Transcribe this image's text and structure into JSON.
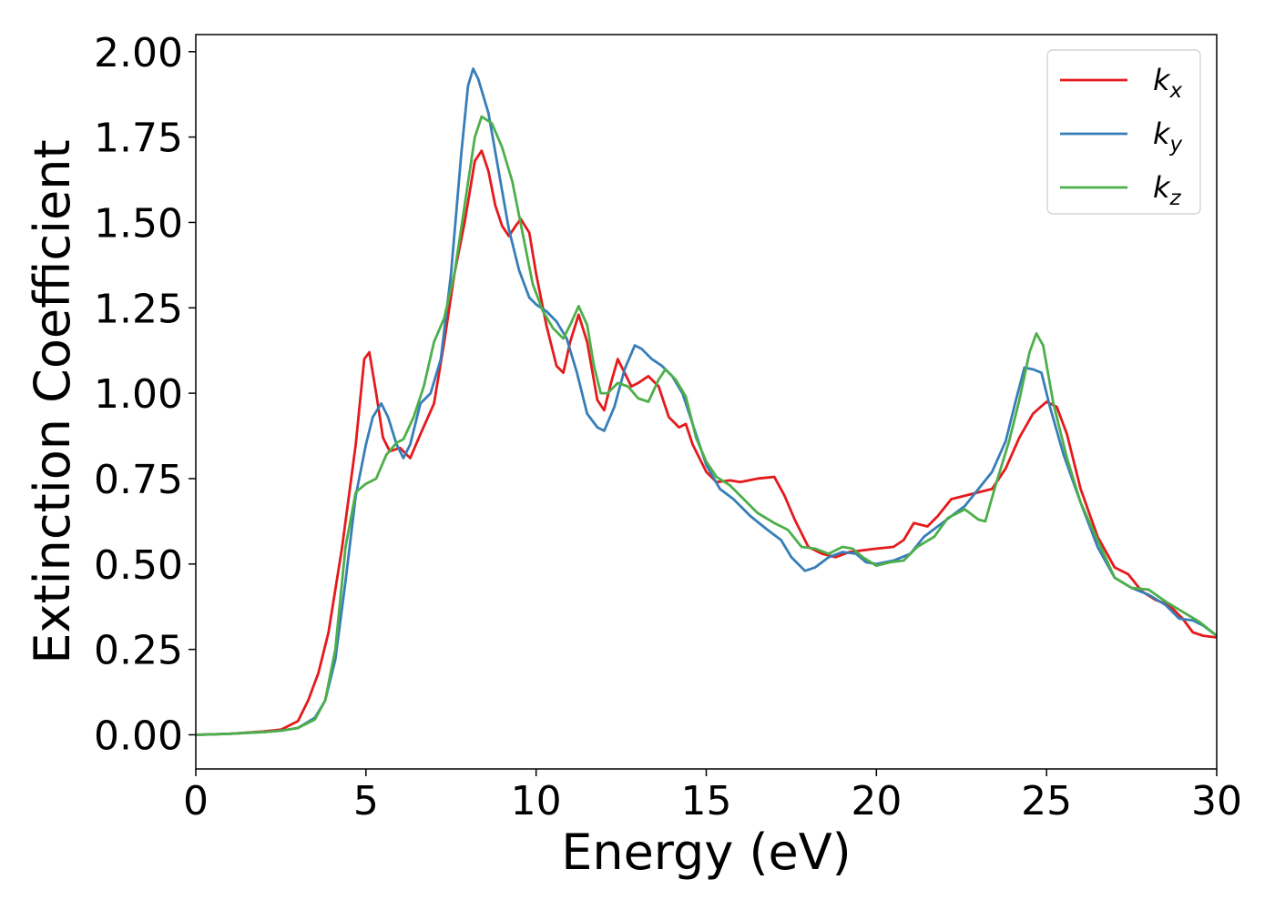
{
  "chart_data": {
    "type": "line",
    "title": "",
    "xlabel": "Energy (eV)",
    "ylabel": "Extinction Coefficient",
    "xlim": [
      0,
      30
    ],
    "ylim": [
      -0.1,
      2.05
    ],
    "xticks": [
      0,
      5,
      10,
      15,
      20,
      25,
      30
    ],
    "xtick_labels": [
      "0",
      "5",
      "10",
      "15",
      "20",
      "25",
      "30"
    ],
    "yticks": [
      0,
      0.25,
      0.5,
      0.75,
      1.0,
      1.25,
      1.5,
      1.75,
      2.0
    ],
    "ytick_labels": [
      "0.00",
      "0.25",
      "0.50",
      "0.75",
      "1.00",
      "1.25",
      "1.50",
      "1.75",
      "2.00"
    ],
    "grid": false,
    "legend_position": "top-right",
    "series": [
      {
        "name": "k",
        "subscript": "x",
        "color": "#e41a1c",
        "points": [
          [
            0,
            0
          ],
          [
            1,
            0.003
          ],
          [
            2,
            0.01
          ],
          [
            2.5,
            0.015
          ],
          [
            3,
            0.04
          ],
          [
            3.3,
            0.1
          ],
          [
            3.6,
            0.18
          ],
          [
            3.9,
            0.3
          ],
          [
            4.3,
            0.55
          ],
          [
            4.7,
            0.85
          ],
          [
            4.95,
            1.1
          ],
          [
            5.1,
            1.12
          ],
          [
            5.3,
            1.0
          ],
          [
            5.5,
            0.87
          ],
          [
            5.7,
            0.83
          ],
          [
            6.0,
            0.84
          ],
          [
            6.3,
            0.81
          ],
          [
            6.6,
            0.88
          ],
          [
            7.0,
            0.97
          ],
          [
            7.3,
            1.15
          ],
          [
            7.6,
            1.35
          ],
          [
            7.9,
            1.5
          ],
          [
            8.2,
            1.68
          ],
          [
            8.4,
            1.71
          ],
          [
            8.6,
            1.65
          ],
          [
            8.8,
            1.55
          ],
          [
            9.0,
            1.49
          ],
          [
            9.2,
            1.46
          ],
          [
            9.4,
            1.49
          ],
          [
            9.55,
            1.51
          ],
          [
            9.8,
            1.47
          ],
          [
            10.0,
            1.35
          ],
          [
            10.3,
            1.2
          ],
          [
            10.6,
            1.08
          ],
          [
            10.8,
            1.06
          ],
          [
            11.0,
            1.15
          ],
          [
            11.25,
            1.23
          ],
          [
            11.5,
            1.15
          ],
          [
            11.8,
            0.98
          ],
          [
            12.0,
            0.95
          ],
          [
            12.2,
            1.03
          ],
          [
            12.4,
            1.1
          ],
          [
            12.6,
            1.06
          ],
          [
            12.8,
            1.02
          ],
          [
            13.0,
            1.03
          ],
          [
            13.3,
            1.05
          ],
          [
            13.6,
            1.02
          ],
          [
            13.9,
            0.93
          ],
          [
            14.2,
            0.9
          ],
          [
            14.4,
            0.91
          ],
          [
            14.6,
            0.85
          ],
          [
            15.0,
            0.77
          ],
          [
            15.3,
            0.74
          ],
          [
            15.7,
            0.745
          ],
          [
            16.0,
            0.74
          ],
          [
            16.5,
            0.75
          ],
          [
            17.0,
            0.755
          ],
          [
            17.3,
            0.7
          ],
          [
            17.6,
            0.63
          ],
          [
            18.0,
            0.55
          ],
          [
            18.4,
            0.53
          ],
          [
            18.8,
            0.52
          ],
          [
            19.2,
            0.535
          ],
          [
            19.6,
            0.54
          ],
          [
            20.0,
            0.545
          ],
          [
            20.5,
            0.55
          ],
          [
            20.8,
            0.57
          ],
          [
            21.1,
            0.62
          ],
          [
            21.5,
            0.61
          ],
          [
            21.8,
            0.64
          ],
          [
            22.2,
            0.69
          ],
          [
            22.6,
            0.7
          ],
          [
            23.0,
            0.71
          ],
          [
            23.4,
            0.72
          ],
          [
            23.8,
            0.78
          ],
          [
            24.2,
            0.87
          ],
          [
            24.6,
            0.94
          ],
          [
            25.0,
            0.975
          ],
          [
            25.3,
            0.96
          ],
          [
            25.6,
            0.88
          ],
          [
            26.0,
            0.72
          ],
          [
            26.5,
            0.58
          ],
          [
            27.0,
            0.49
          ],
          [
            27.4,
            0.47
          ],
          [
            27.8,
            0.42
          ],
          [
            28.2,
            0.395
          ],
          [
            28.6,
            0.38
          ],
          [
            29.0,
            0.34
          ],
          [
            29.3,
            0.3
          ],
          [
            29.6,
            0.29
          ],
          [
            30,
            0.285
          ]
        ]
      },
      {
        "name": "k",
        "subscript": "y",
        "color": "#377eb8",
        "points": [
          [
            0,
            0
          ],
          [
            1,
            0.003
          ],
          [
            2,
            0.008
          ],
          [
            2.5,
            0.012
          ],
          [
            3,
            0.02
          ],
          [
            3.5,
            0.05
          ],
          [
            3.8,
            0.1
          ],
          [
            4.1,
            0.22
          ],
          [
            4.4,
            0.45
          ],
          [
            4.7,
            0.7
          ],
          [
            5.0,
            0.85
          ],
          [
            5.2,
            0.93
          ],
          [
            5.45,
            0.97
          ],
          [
            5.65,
            0.93
          ],
          [
            5.9,
            0.85
          ],
          [
            6.1,
            0.81
          ],
          [
            6.3,
            0.85
          ],
          [
            6.6,
            0.97
          ],
          [
            6.9,
            1.0
          ],
          [
            7.2,
            1.1
          ],
          [
            7.5,
            1.35
          ],
          [
            7.8,
            1.7
          ],
          [
            8.0,
            1.9
          ],
          [
            8.15,
            1.95
          ],
          [
            8.3,
            1.92
          ],
          [
            8.6,
            1.82
          ],
          [
            8.9,
            1.65
          ],
          [
            9.2,
            1.48
          ],
          [
            9.5,
            1.36
          ],
          [
            9.8,
            1.28
          ],
          [
            10.0,
            1.26
          ],
          [
            10.3,
            1.24
          ],
          [
            10.6,
            1.21
          ],
          [
            10.9,
            1.16
          ],
          [
            11.2,
            1.06
          ],
          [
            11.5,
            0.94
          ],
          [
            11.8,
            0.9
          ],
          [
            12.0,
            0.89
          ],
          [
            12.3,
            0.96
          ],
          [
            12.6,
            1.07
          ],
          [
            12.9,
            1.14
          ],
          [
            13.1,
            1.13
          ],
          [
            13.4,
            1.1
          ],
          [
            13.7,
            1.08
          ],
          [
            14.0,
            1.05
          ],
          [
            14.3,
            1.0
          ],
          [
            14.7,
            0.88
          ],
          [
            15.0,
            0.79
          ],
          [
            15.4,
            0.72
          ],
          [
            15.8,
            0.69
          ],
          [
            16.3,
            0.64
          ],
          [
            16.8,
            0.6
          ],
          [
            17.2,
            0.57
          ],
          [
            17.5,
            0.52
          ],
          [
            17.9,
            0.48
          ],
          [
            18.2,
            0.49
          ],
          [
            18.6,
            0.52
          ],
          [
            19.0,
            0.535
          ],
          [
            19.4,
            0.53
          ],
          [
            19.7,
            0.505
          ],
          [
            20.0,
            0.5
          ],
          [
            20.5,
            0.51
          ],
          [
            21.0,
            0.53
          ],
          [
            21.4,
            0.58
          ],
          [
            21.8,
            0.61
          ],
          [
            22.2,
            0.64
          ],
          [
            22.6,
            0.67
          ],
          [
            23.0,
            0.72
          ],
          [
            23.4,
            0.77
          ],
          [
            23.8,
            0.86
          ],
          [
            24.1,
            0.98
          ],
          [
            24.35,
            1.075
          ],
          [
            24.6,
            1.07
          ],
          [
            24.85,
            1.06
          ],
          [
            25.1,
            0.96
          ],
          [
            25.5,
            0.82
          ],
          [
            26.0,
            0.68
          ],
          [
            26.5,
            0.55
          ],
          [
            27.0,
            0.46
          ],
          [
            27.5,
            0.43
          ],
          [
            28.0,
            0.41
          ],
          [
            28.5,
            0.38
          ],
          [
            28.9,
            0.34
          ],
          [
            29.3,
            0.335
          ],
          [
            29.6,
            0.32
          ],
          [
            30,
            0.29
          ]
        ]
      },
      {
        "name": "k",
        "subscript": "z",
        "color": "#4daf4a",
        "points": [
          [
            0,
            0
          ],
          [
            1,
            0.003
          ],
          [
            2,
            0.008
          ],
          [
            2.5,
            0.012
          ],
          [
            3,
            0.02
          ],
          [
            3.5,
            0.045
          ],
          [
            3.8,
            0.1
          ],
          [
            4.1,
            0.25
          ],
          [
            4.4,
            0.55
          ],
          [
            4.7,
            0.71
          ],
          [
            5.0,
            0.735
          ],
          [
            5.3,
            0.75
          ],
          [
            5.6,
            0.82
          ],
          [
            5.9,
            0.855
          ],
          [
            6.1,
            0.865
          ],
          [
            6.4,
            0.93
          ],
          [
            6.7,
            1.02
          ],
          [
            7.0,
            1.15
          ],
          [
            7.3,
            1.22
          ],
          [
            7.6,
            1.35
          ],
          [
            7.9,
            1.55
          ],
          [
            8.2,
            1.75
          ],
          [
            8.4,
            1.81
          ],
          [
            8.7,
            1.79
          ],
          [
            9.0,
            1.72
          ],
          [
            9.3,
            1.62
          ],
          [
            9.6,
            1.47
          ],
          [
            9.9,
            1.32
          ],
          [
            10.2,
            1.24
          ],
          [
            10.5,
            1.19
          ],
          [
            10.8,
            1.16
          ],
          [
            11.0,
            1.2
          ],
          [
            11.25,
            1.255
          ],
          [
            11.5,
            1.2
          ],
          [
            11.7,
            1.08
          ],
          [
            11.9,
            1.0
          ],
          [
            12.1,
            1.0
          ],
          [
            12.4,
            1.03
          ],
          [
            12.7,
            1.02
          ],
          [
            13.0,
            0.985
          ],
          [
            13.3,
            0.975
          ],
          [
            13.6,
            1.04
          ],
          [
            13.8,
            1.07
          ],
          [
            14.1,
            1.04
          ],
          [
            14.4,
            0.99
          ],
          [
            14.7,
            0.87
          ],
          [
            15.0,
            0.8
          ],
          [
            15.3,
            0.755
          ],
          [
            15.7,
            0.73
          ],
          [
            16.1,
            0.69
          ],
          [
            16.5,
            0.65
          ],
          [
            17.0,
            0.62
          ],
          [
            17.4,
            0.6
          ],
          [
            17.8,
            0.55
          ],
          [
            18.2,
            0.545
          ],
          [
            18.6,
            0.53
          ],
          [
            19.0,
            0.55
          ],
          [
            19.3,
            0.545
          ],
          [
            19.6,
            0.52
          ],
          [
            20.0,
            0.495
          ],
          [
            20.4,
            0.505
          ],
          [
            20.8,
            0.51
          ],
          [
            21.2,
            0.55
          ],
          [
            21.7,
            0.58
          ],
          [
            22.1,
            0.635
          ],
          [
            22.6,
            0.66
          ],
          [
            23.0,
            0.63
          ],
          [
            23.2,
            0.625
          ],
          [
            23.5,
            0.73
          ],
          [
            23.9,
            0.86
          ],
          [
            24.2,
            0.98
          ],
          [
            24.5,
            1.12
          ],
          [
            24.7,
            1.175
          ],
          [
            24.9,
            1.14
          ],
          [
            25.2,
            0.97
          ],
          [
            25.6,
            0.81
          ],
          [
            26.0,
            0.68
          ],
          [
            26.5,
            0.57
          ],
          [
            27.0,
            0.46
          ],
          [
            27.5,
            0.43
          ],
          [
            28.0,
            0.425
          ],
          [
            28.5,
            0.39
          ],
          [
            29.0,
            0.36
          ],
          [
            29.5,
            0.33
          ],
          [
            30,
            0.29
          ]
        ]
      }
    ]
  }
}
